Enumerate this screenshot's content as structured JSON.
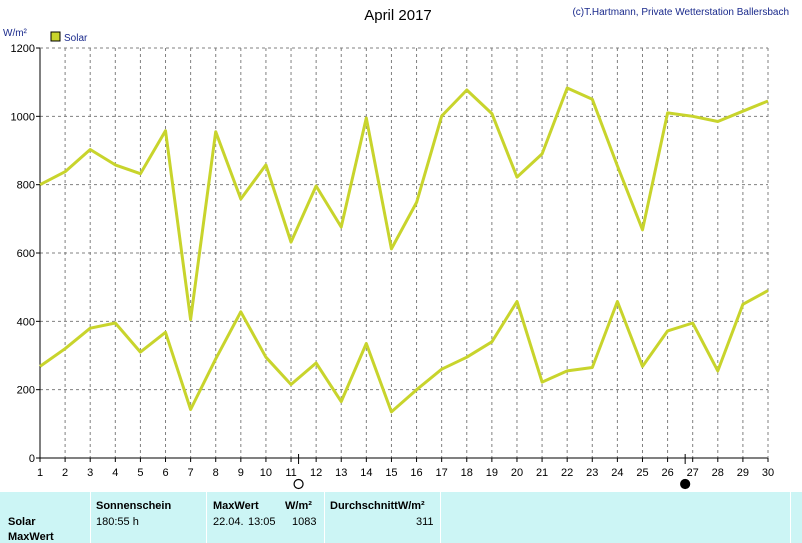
{
  "header": {
    "title": "April 2017",
    "credit": "(c)T.Hartmann, Private Wetterstation Ballersbach",
    "unit": "W/m²"
  },
  "chart_data": {
    "type": "line",
    "title": "April 2017",
    "ylabel": "W/m²",
    "ylim": [
      0,
      1200
    ],
    "yticks": [
      0,
      200,
      400,
      600,
      800,
      1000,
      1200
    ],
    "x": [
      1,
      2,
      3,
      4,
      5,
      6,
      7,
      8,
      9,
      10,
      11,
      12,
      13,
      14,
      15,
      16,
      17,
      18,
      19,
      20,
      21,
      22,
      23,
      24,
      25,
      26,
      27,
      28,
      29,
      30
    ],
    "legend": [
      "Solar"
    ],
    "grid": true,
    "series": [
      {
        "name": "Solar",
        "role": "max",
        "values": [
          800,
          838,
          903,
          858,
          832,
          958,
          405,
          955,
          758,
          858,
          632,
          796,
          676,
          995,
          612,
          748,
          1001,
          1077,
          1008,
          822,
          890,
          1083,
          1050,
          855,
          668,
          1010,
          1000,
          985,
          1015,
          1045
        ]
      },
      {
        "name": "Solar",
        "role": "mean",
        "values": [
          268,
          320,
          380,
          395,
          310,
          368,
          142,
          290,
          428,
          295,
          215,
          278,
          165,
          335,
          135,
          200,
          260,
          295,
          340,
          458,
          222,
          255,
          265,
          458,
          268,
          372,
          395,
          255,
          450,
          490
        ]
      }
    ],
    "moon_markers": [
      {
        "type": "full-moon",
        "x": 11.3
      },
      {
        "type": "new-moon",
        "x": 26.7
      }
    ],
    "colors": {
      "line": "#c8d42c",
      "legend_fill": "#c8d42c",
      "grid": "#808080"
    }
  },
  "stats": {
    "headers": {
      "sunshine": "Sonnenschein",
      "maxwert": "MaxWert",
      "unit": "W/m²",
      "average": "DurchschnittW/m²"
    },
    "row_labels": [
      "Solar",
      "MaxWert"
    ],
    "values": {
      "sunshine": "180:55 h",
      "max_date": "22.04.",
      "max_time": "13:05",
      "max_value": "1083",
      "average": "311"
    }
  }
}
